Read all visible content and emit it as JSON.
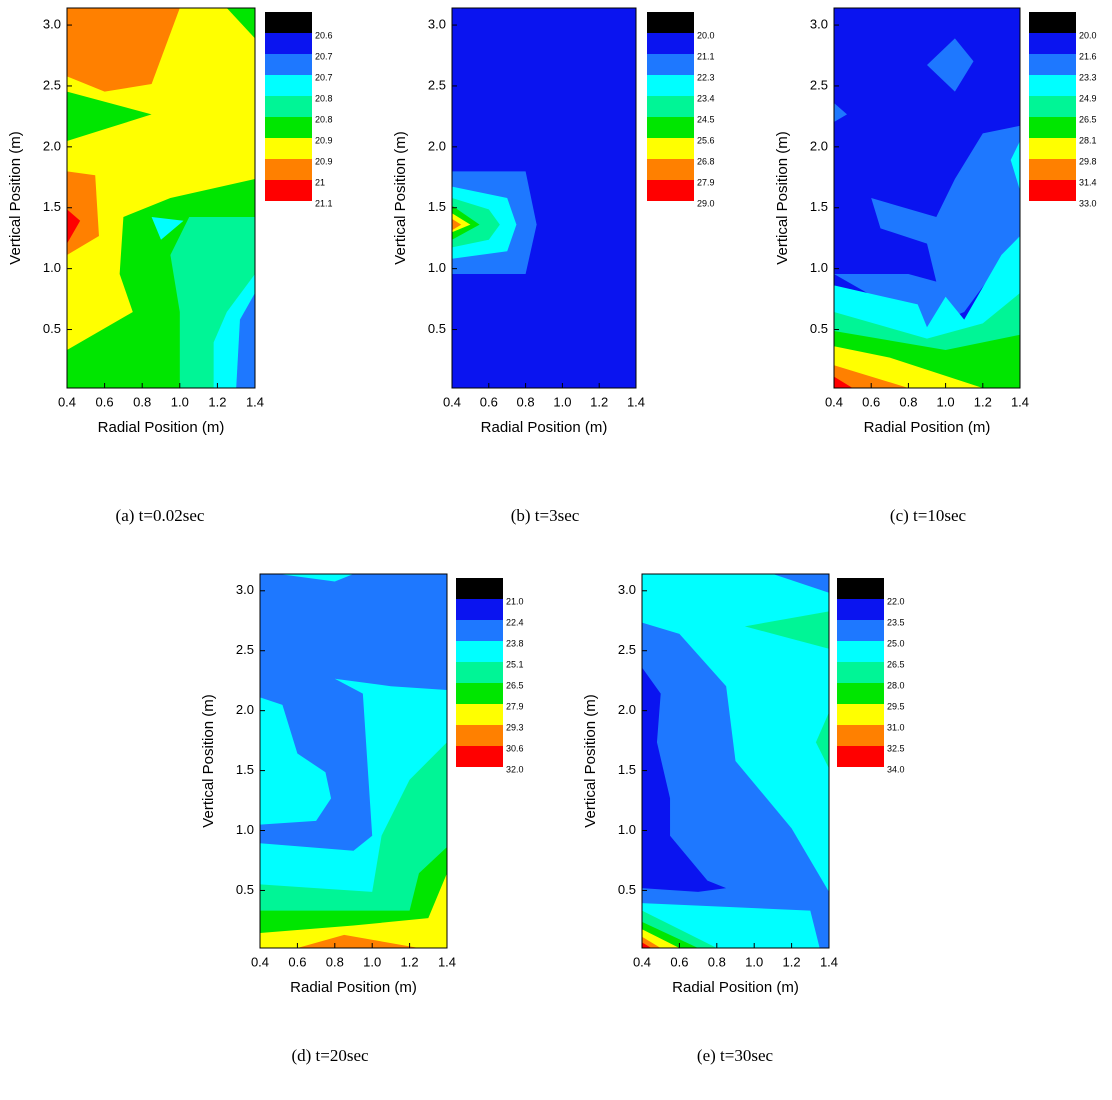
{
  "chart_data": [
    {
      "type": "contour",
      "caption": "(a) t=0.02sec",
      "xlabel": "Radial Position (m)",
      "ylabel": "Vertical Position (m)",
      "xlim": [
        0.4,
        1.4
      ],
      "xticks": [
        0.4,
        0.6,
        0.8,
        {
          "value": 1,
          "label": "1.0"
        },
        1.2,
        1.4
      ],
      "ylim": [
        0.02,
        3.14
      ],
      "yticks": [
        0.5,
        {
          "value": 1,
          "label": "1.0"
        },
        1.5,
        {
          "value": 2,
          "label": "2.0"
        },
        2.5,
        {
          "value": 3,
          "label": "3.0"
        }
      ],
      "levels": [
        20.6,
        20.7,
        20.7,
        20.8,
        20.8,
        20.9,
        20.9,
        21.0,
        21.1
      ],
      "colors": [
        "#000000",
        "#0a14f0",
        "#1e78ff",
        "#00ffff",
        "#00f596",
        "#00e600",
        "#ffff00",
        "#ff8000",
        "#ff0000"
      ]
    },
    {
      "type": "contour",
      "caption": "(b) t=3sec",
      "xlabel": "Radial Position (m)",
      "ylabel": "Vertical Position (m)",
      "xlim": [
        0.4,
        1.4
      ],
      "xticks": [
        0.4,
        0.6,
        0.8,
        {
          "value": 1,
          "label": "1.0"
        },
        1.2,
        1.4
      ],
      "ylim": [
        0.02,
        3.14
      ],
      "yticks": [
        0.5,
        {
          "value": 1,
          "label": "1.0"
        },
        1.5,
        {
          "value": 2,
          "label": "2.0"
        },
        2.5,
        {
          "value": 3,
          "label": "3.0"
        }
      ],
      "levels": [
        {
          "value": 20,
          "label": "20.0"
        },
        21.1,
        22.3,
        23.4,
        24.5,
        25.6,
        26.8,
        27.9,
        {
          "value": 29,
          "label": "29.0"
        }
      ],
      "colors": [
        "#000000",
        "#0a14f0",
        "#1e78ff",
        "#00ffff",
        "#00f596",
        "#00e600",
        "#ffff00",
        "#ff8000",
        "#ff0000"
      ]
    },
    {
      "type": "contour",
      "caption": "(c) t=10sec",
      "xlabel": "Radial Position (m)",
      "ylabel": "Vertical Position (m)",
      "xlim": [
        0.4,
        1.4
      ],
      "xticks": [
        0.4,
        0.6,
        0.8,
        {
          "value": 1,
          "label": "1.0"
        },
        1.2,
        1.4
      ],
      "ylim": [
        0.02,
        3.14
      ],
      "yticks": [
        0.5,
        {
          "value": 1,
          "label": "1.0"
        },
        1.5,
        {
          "value": 2,
          "label": "2.0"
        },
        2.5,
        {
          "value": 3,
          "label": "3.0"
        }
      ],
      "levels": [
        {
          "value": 20,
          "label": "20.0"
        },
        21.6,
        23.3,
        24.9,
        26.5,
        28.1,
        29.8,
        31.4,
        {
          "value": 33,
          "label": "33.0"
        }
      ],
      "colors": [
        "#000000",
        "#0a14f0",
        "#1e78ff",
        "#00ffff",
        "#00f596",
        "#00e600",
        "#ffff00",
        "#ff8000",
        "#ff0000"
      ]
    },
    {
      "type": "contour",
      "caption": "(d) t=20sec",
      "xlabel": "Radial Position (m)",
      "ylabel": "Vertical Position (m)",
      "xlim": [
        0.4,
        1.4
      ],
      "xticks": [
        0.4,
        0.6,
        0.8,
        {
          "value": 1,
          "label": "1.0"
        },
        1.2,
        1.4
      ],
      "ylim": [
        0.02,
        3.14
      ],
      "yticks": [
        0.5,
        {
          "value": 1,
          "label": "1.0"
        },
        1.5,
        {
          "value": 2,
          "label": "2.0"
        },
        2.5,
        {
          "value": 3,
          "label": "3.0"
        }
      ],
      "levels": [
        {
          "value": 21,
          "label": "21.0"
        },
        22.4,
        23.8,
        25.1,
        26.5,
        27.9,
        29.3,
        30.6,
        {
          "value": 32,
          "label": "32.0"
        }
      ],
      "colors": [
        "#000000",
        "#0a14f0",
        "#1e78ff",
        "#00ffff",
        "#00f596",
        "#00e600",
        "#ffff00",
        "#ff8000",
        "#ff0000"
      ]
    },
    {
      "type": "contour",
      "caption": "(e) t=30sec",
      "xlabel": "Radial Position (m)",
      "ylabel": "Vertical Position (m)",
      "xlim": [
        0.4,
        1.4
      ],
      "xticks": [
        0.4,
        0.6,
        0.8,
        {
          "value": 1,
          "label": "1.0"
        },
        1.2,
        1.4
      ],
      "ylim": [
        0.02,
        3.14
      ],
      "yticks": [
        0.5,
        {
          "value": 1,
          "label": "1.0"
        },
        1.5,
        {
          "value": 2,
          "label": "2.0"
        },
        2.5,
        {
          "value": 3,
          "label": "3.0"
        }
      ],
      "levels": [
        {
          "value": 22,
          "label": "22.0"
        },
        23.5,
        {
          "value": 25,
          "label": "25.0"
        },
        26.5,
        {
          "value": 28,
          "label": "28.0"
        },
        29.5,
        {
          "value": 31,
          "label": "31.0"
        },
        32.5,
        {
          "value": 34,
          "label": "34.0"
        }
      ],
      "colors": [
        "#000000",
        "#0a14f0",
        "#1e78ff",
        "#00ffff",
        "#00f596",
        "#00e600",
        "#ffff00",
        "#ff8000",
        "#ff0000"
      ]
    }
  ]
}
